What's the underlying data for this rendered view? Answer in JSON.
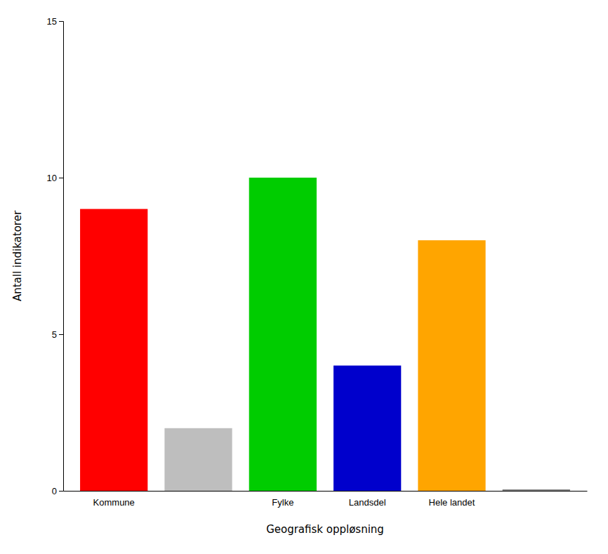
{
  "chart_data": {
    "type": "bar",
    "categories": [
      "Kommune",
      null,
      "Fylke",
      "Landsdel",
      "Hele landet",
      null
    ],
    "values": [
      9,
      2,
      10,
      4,
      8,
      0
    ],
    "colors": [
      "#FF0000",
      "#BEBEBE",
      "#00CC00",
      "#0000CC",
      "#FFA500",
      "#808080"
    ],
    "x_label": "Geografisk oppløsning",
    "y_label": "Antall indikatorer",
    "ylim": [
      0,
      15
    ],
    "yticks": [
      0,
      5,
      10,
      15
    ],
    "grid": false
  }
}
